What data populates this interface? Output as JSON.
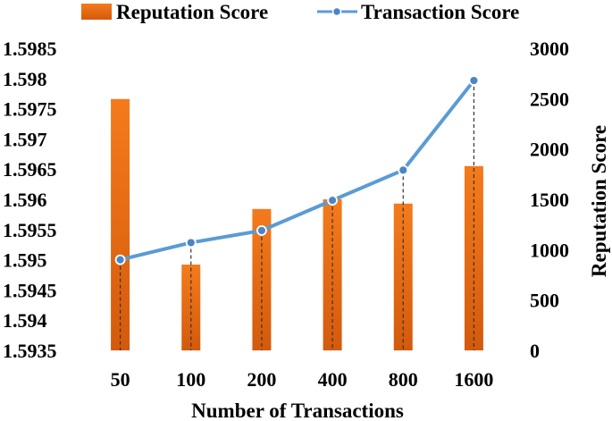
{
  "chart_data": {
    "type": "bar",
    "categories": [
      "50",
      "100",
      "200",
      "400",
      "800",
      "1600"
    ],
    "xlabel": "Number of Transactions",
    "ylabel_left": "",
    "ylabel_right": "Reputation Score",
    "ylim_left": [
      1.5935,
      1.5985
    ],
    "yticks_left": [
      "1.5935",
      "1.594",
      "1.5945",
      "1.595",
      "1.5955",
      "1.596",
      "1.5965",
      "1.597",
      "1.5975",
      "1.598",
      "1.5985"
    ],
    "ylim_right": [
      0,
      3000
    ],
    "yticks_right": [
      "0",
      "500",
      "1000",
      "1500",
      "2000",
      "2500",
      "3000"
    ],
    "grid": false,
    "legend_position": "top",
    "series": [
      {
        "name": "Reputation Score",
        "kind": "bar",
        "axis": "left",
        "color": "#E56A10",
        "values": [
          1.59766,
          1.59492,
          1.59584,
          1.596,
          1.59593,
          1.59655
        ]
      },
      {
        "name": "Transaction Score",
        "kind": "line",
        "axis": "right",
        "color": "#5B9BD5",
        "values": [
          900,
          1070,
          1190,
          1490,
          1790,
          2680
        ]
      }
    ]
  }
}
